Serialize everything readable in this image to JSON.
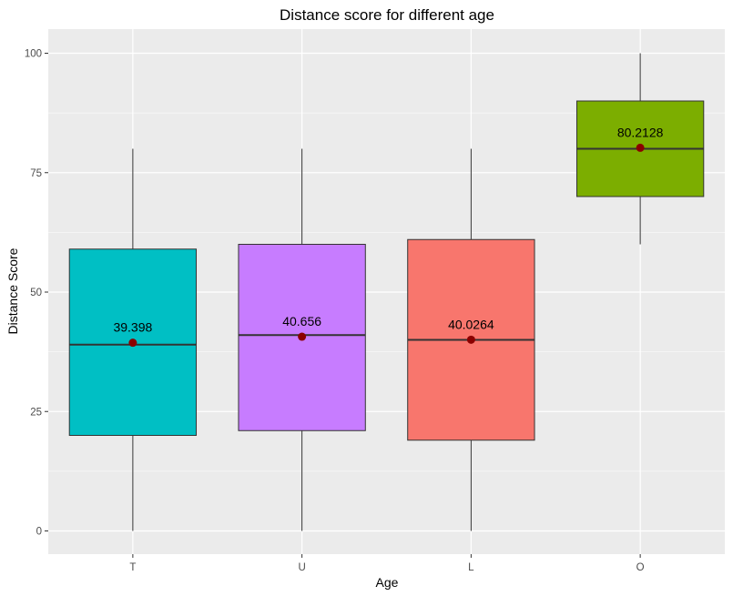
{
  "chart_data": {
    "type": "box",
    "title": "Distance score for different age",
    "xlabel": "Age",
    "ylabel": "Distance Score",
    "ylim": [
      -5,
      105
    ],
    "yticks": [
      0,
      25,
      50,
      75,
      100
    ],
    "grid": true,
    "legend": "none",
    "categories": [
      "T",
      "U",
      "L",
      "O"
    ],
    "boxes": [
      {
        "category": "T",
        "min": 0,
        "q1": 20,
        "median": 39,
        "q3": 59,
        "max": 80,
        "mean": 39.398,
        "mean_label": "39.398",
        "color": "#00BFC4"
      },
      {
        "category": "U",
        "min": 0,
        "q1": 21,
        "median": 41,
        "q3": 60,
        "max": 80,
        "mean": 40.656,
        "mean_label": "40.656",
        "color": "#C77CFF"
      },
      {
        "category": "L",
        "min": 0,
        "q1": 19,
        "median": 40,
        "q3": 61,
        "max": 80,
        "mean": 40.0264,
        "mean_label": "40.0264",
        "color": "#F8766D"
      },
      {
        "category": "O",
        "min": 60,
        "q1": 70,
        "median": 80,
        "q3": 90,
        "max": 100,
        "mean": 80.2128,
        "mean_label": "80.2128",
        "color": "#7CAE00"
      }
    ],
    "mean_point_color": "#8B0000",
    "panel_background": "#EBEBEB",
    "grid_color": "#FFFFFF"
  }
}
